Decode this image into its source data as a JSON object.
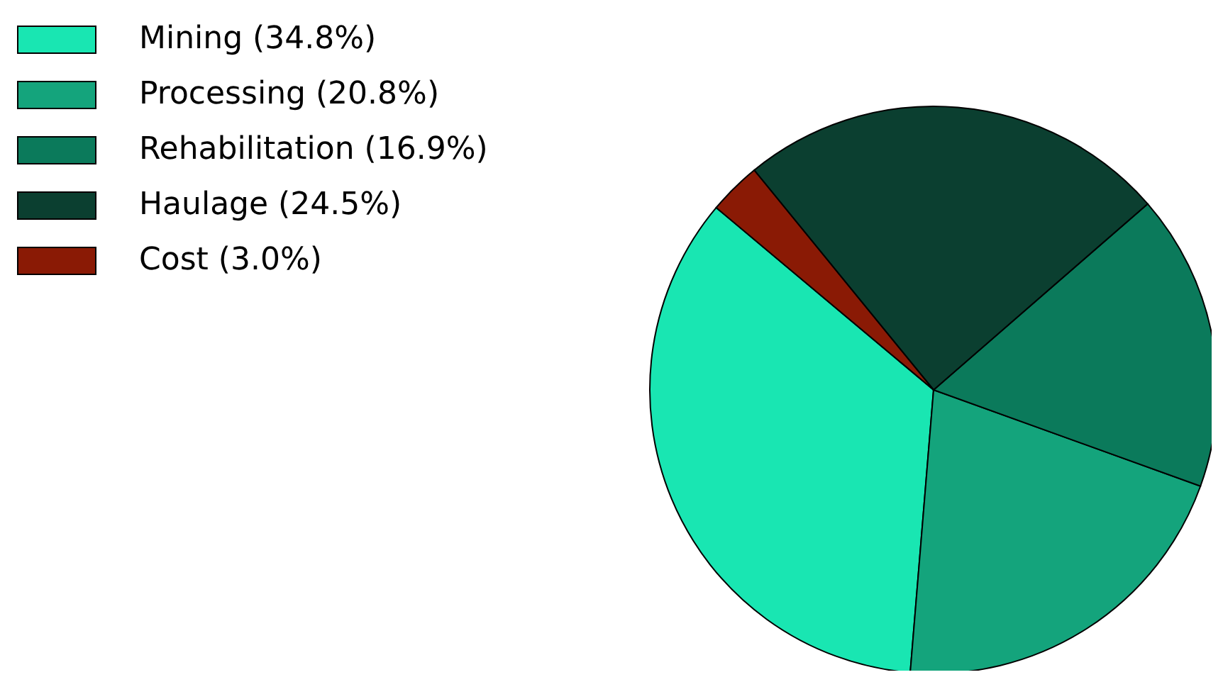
{
  "chart_data": {
    "type": "pie",
    "categories": [
      "Mining (34.8%)",
      "Processing (20.8%)",
      "Rehabilitation (16.9%)",
      "Haulage (24.5%)",
      "Cost (3.0%)"
    ],
    "values": [
      34.8,
      20.8,
      16.9,
      24.5,
      3.0
    ],
    "colors": [
      "#19e6b2",
      "#14a47c",
      "#0b7a5b",
      "#0b3f30",
      "#8a1a05"
    ],
    "legend": "top left"
  }
}
